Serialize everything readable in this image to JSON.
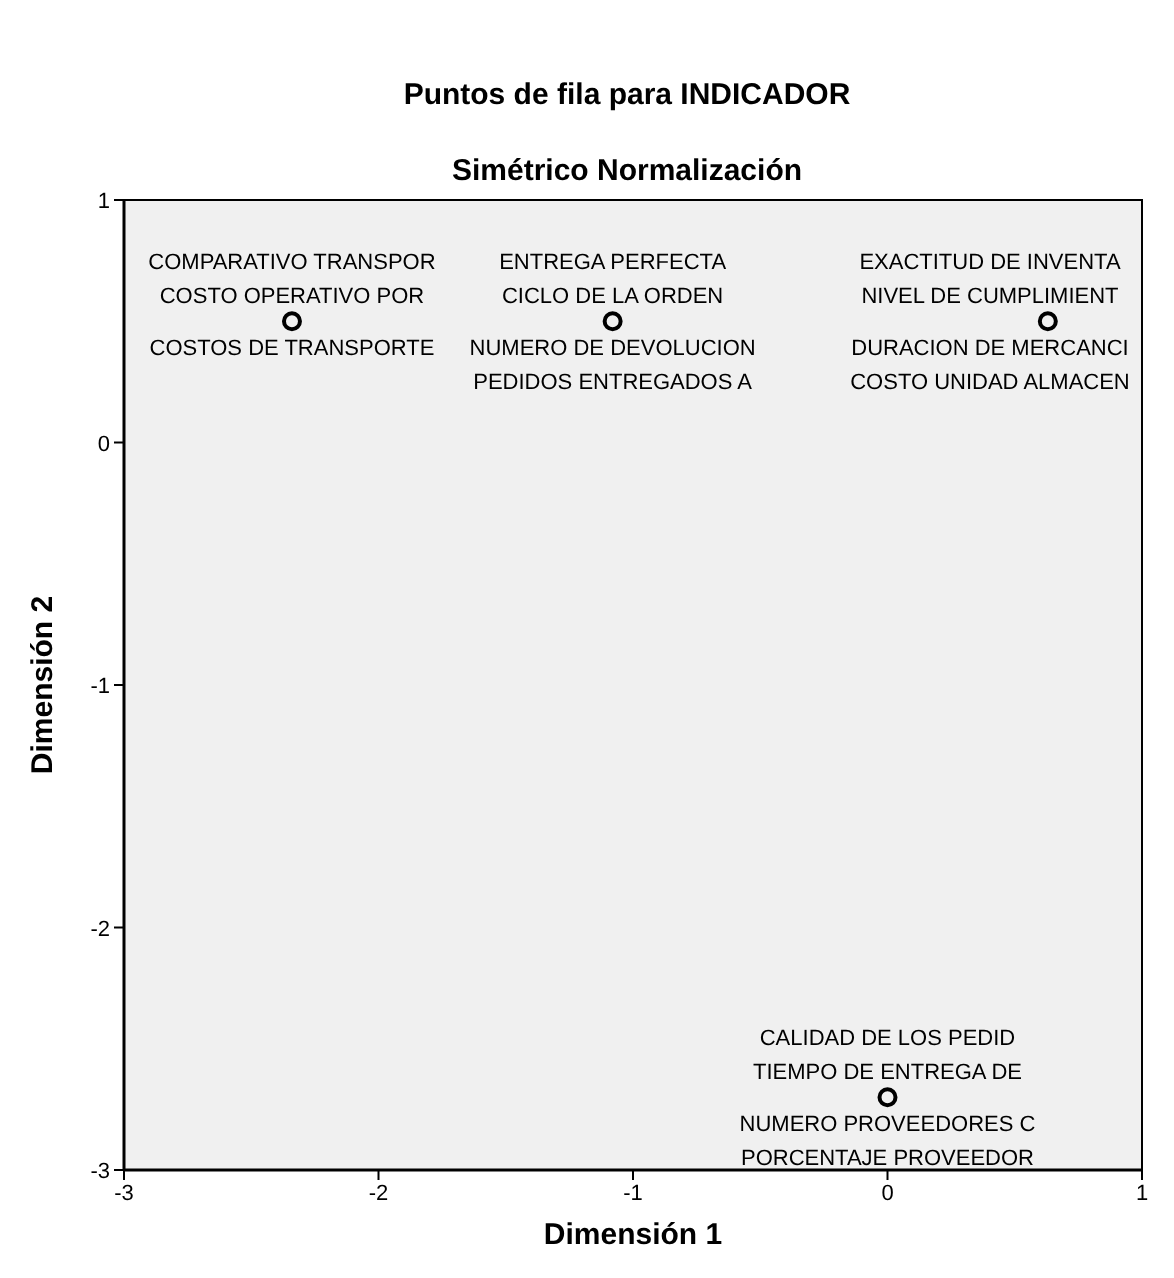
{
  "chart_data": {
    "type": "scatter",
    "title": "Puntos de fila para INDICADOR",
    "subtitle": "Simétrico Normalización",
    "xlabel": "Dimensión 1",
    "ylabel": "Dimensión 2",
    "x": [
      -2.34,
      -1.08,
      0.63,
      0.0
    ],
    "series": [
      {
        "color": "#000000",
        "values": [
          0.5,
          0.5,
          0.5,
          -2.7
        ]
      }
    ],
    "marker": "circle",
    "grid": false,
    "xlim": [
      -3,
      1
    ],
    "ylim": [
      -3,
      1
    ],
    "xticks": [
      -3,
      -2,
      -1,
      0,
      1
    ],
    "yticks": [
      -3,
      -2,
      -1,
      0,
      1
    ],
    "annotations": [
      {
        "text": "COSTO OPERATIVO POR",
        "x": -2.34,
        "y": 0.5
      },
      {
        "text": "COSTOS DE TRANSPORTE",
        "x": -2.34,
        "y": 0.5
      },
      {
        "text": "COMPARATIVO TRANSPOR",
        "x": -2.34,
        "y": 0.5
      },
      {
        "text": "CICLO DE LA ORDEN",
        "x": -1.08,
        "y": 0.5
      },
      {
        "text": "NUMERO DE DEVOLUCION",
        "x": -1.08,
        "y": 0.5
      },
      {
        "text": "ENTREGA PERFECTA",
        "x": -1.08,
        "y": 0.5
      },
      {
        "text": "PEDIDOS ENTREGADOS A",
        "x": -1.08,
        "y": 0.5
      },
      {
        "text": "NIVEL DE CUMPLIMIENT",
        "x": 0.63,
        "y": 0.5
      },
      {
        "text": "DURACION DE MERCANCI",
        "x": 0.63,
        "y": 0.5
      },
      {
        "text": "EXACTITUD DE INVENTA",
        "x": 0.63,
        "y": 0.5
      },
      {
        "text": "COSTO UNIDAD ALMACEN",
        "x": 0.63,
        "y": 0.5
      },
      {
        "text": "TIEMPO DE ENTREGA DE",
        "x": 0.0,
        "y": -2.7
      },
      {
        "text": "NUMERO PROVEEDORES C",
        "x": 0.0,
        "y": -2.7
      },
      {
        "text": "CALIDAD DE LOS PEDID",
        "x": 0.0,
        "y": -2.7
      },
      {
        "text": "PORCENTAJE PROVEEDOR",
        "x": 0.0,
        "y": -2.7
      }
    ]
  }
}
